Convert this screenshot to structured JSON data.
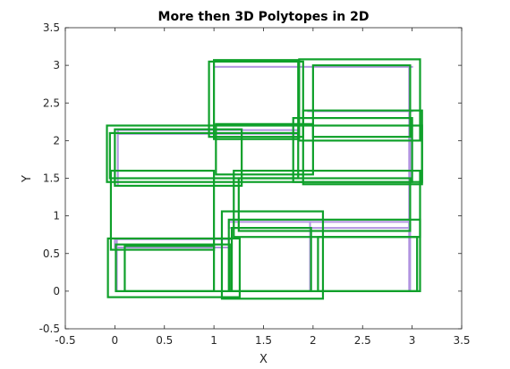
{
  "chart_data": {
    "type": "line",
    "title": "More then 3D Polytopes in 2D",
    "xlabel": "X",
    "ylabel": "Y",
    "xlim": [
      -0.5,
      3.5
    ],
    "ylim": [
      -0.5,
      3.5
    ],
    "xticks": [
      -0.5,
      0,
      0.5,
      1,
      1.5,
      2,
      2.5,
      3,
      3.5
    ],
    "xtick_labels": [
      "-0.5",
      "0",
      "0.5",
      "1",
      "1.5",
      "2",
      "2.5",
      "3",
      "3.5"
    ],
    "yticks": [
      -0.5,
      0,
      0.5,
      1,
      1.5,
      2,
      2.5,
      3,
      3.5
    ],
    "ytick_labels": [
      "-0.5",
      "0",
      "0.5",
      "1",
      "1.5",
      "2",
      "2.5",
      "3",
      "3.5"
    ],
    "grid": false,
    "series": [
      {
        "color": "#b294e0",
        "rectangles": [
          [
            0.02,
            0.0,
            0.02,
            0.69
          ],
          [
            0.0,
            0.58,
            1.18,
            0.69
          ],
          [
            0.03,
            2.09,
            1.85,
            2.14
          ],
          [
            0.03,
            1.42,
            0.03,
            2.14
          ],
          [
            1.0,
            2.98,
            3.0,
            2.98
          ],
          [
            2.97,
            0.0,
            2.98,
            2.98
          ],
          [
            1.95,
            2.39,
            3.0,
            2.39
          ],
          [
            1.15,
            0.84,
            2.97,
            0.92
          ],
          [
            1.97,
            0.0,
            1.97,
            0.92
          ]
        ]
      },
      {
        "color": "#0fa02a",
        "rectangles": [
          [
            -0.07,
            -0.08,
            1.26,
            0.7
          ],
          [
            0.01,
            0.0,
            1.16,
            0.62
          ],
          [
            -0.08,
            1.45,
            3.1,
            2.2
          ],
          [
            -0.05,
            1.5,
            1.85,
            2.1
          ],
          [
            0.0,
            1.4,
            1.28,
            2.15
          ],
          [
            -0.04,
            0.55,
            1.0,
            1.6
          ],
          [
            1.08,
            -0.1,
            2.1,
            1.06
          ],
          [
            1.18,
            0.0,
            1.98,
            0.84
          ],
          [
            1.2,
            0.72,
            3.08,
            1.6
          ],
          [
            1.25,
            0.8,
            2.98,
            1.5
          ],
          [
            1.0,
            2.02,
            1.85,
            3.07
          ],
          [
            0.95,
            2.05,
            1.9,
            3.05
          ],
          [
            1.9,
            1.42,
            3.1,
            2.4
          ],
          [
            1.8,
            1.45,
            3.0,
            2.3
          ],
          [
            1.86,
            2.0,
            3.08,
            3.08
          ],
          [
            2.0,
            2.05,
            2.98,
            3.0
          ],
          [
            1.02,
            1.55,
            2.0,
            2.22
          ],
          [
            0.1,
            0.0,
            1.0,
            0.6
          ],
          [
            1.15,
            0.0,
            3.08,
            0.95
          ],
          [
            2.05,
            0.0,
            3.05,
            0.72
          ]
        ]
      }
    ]
  }
}
